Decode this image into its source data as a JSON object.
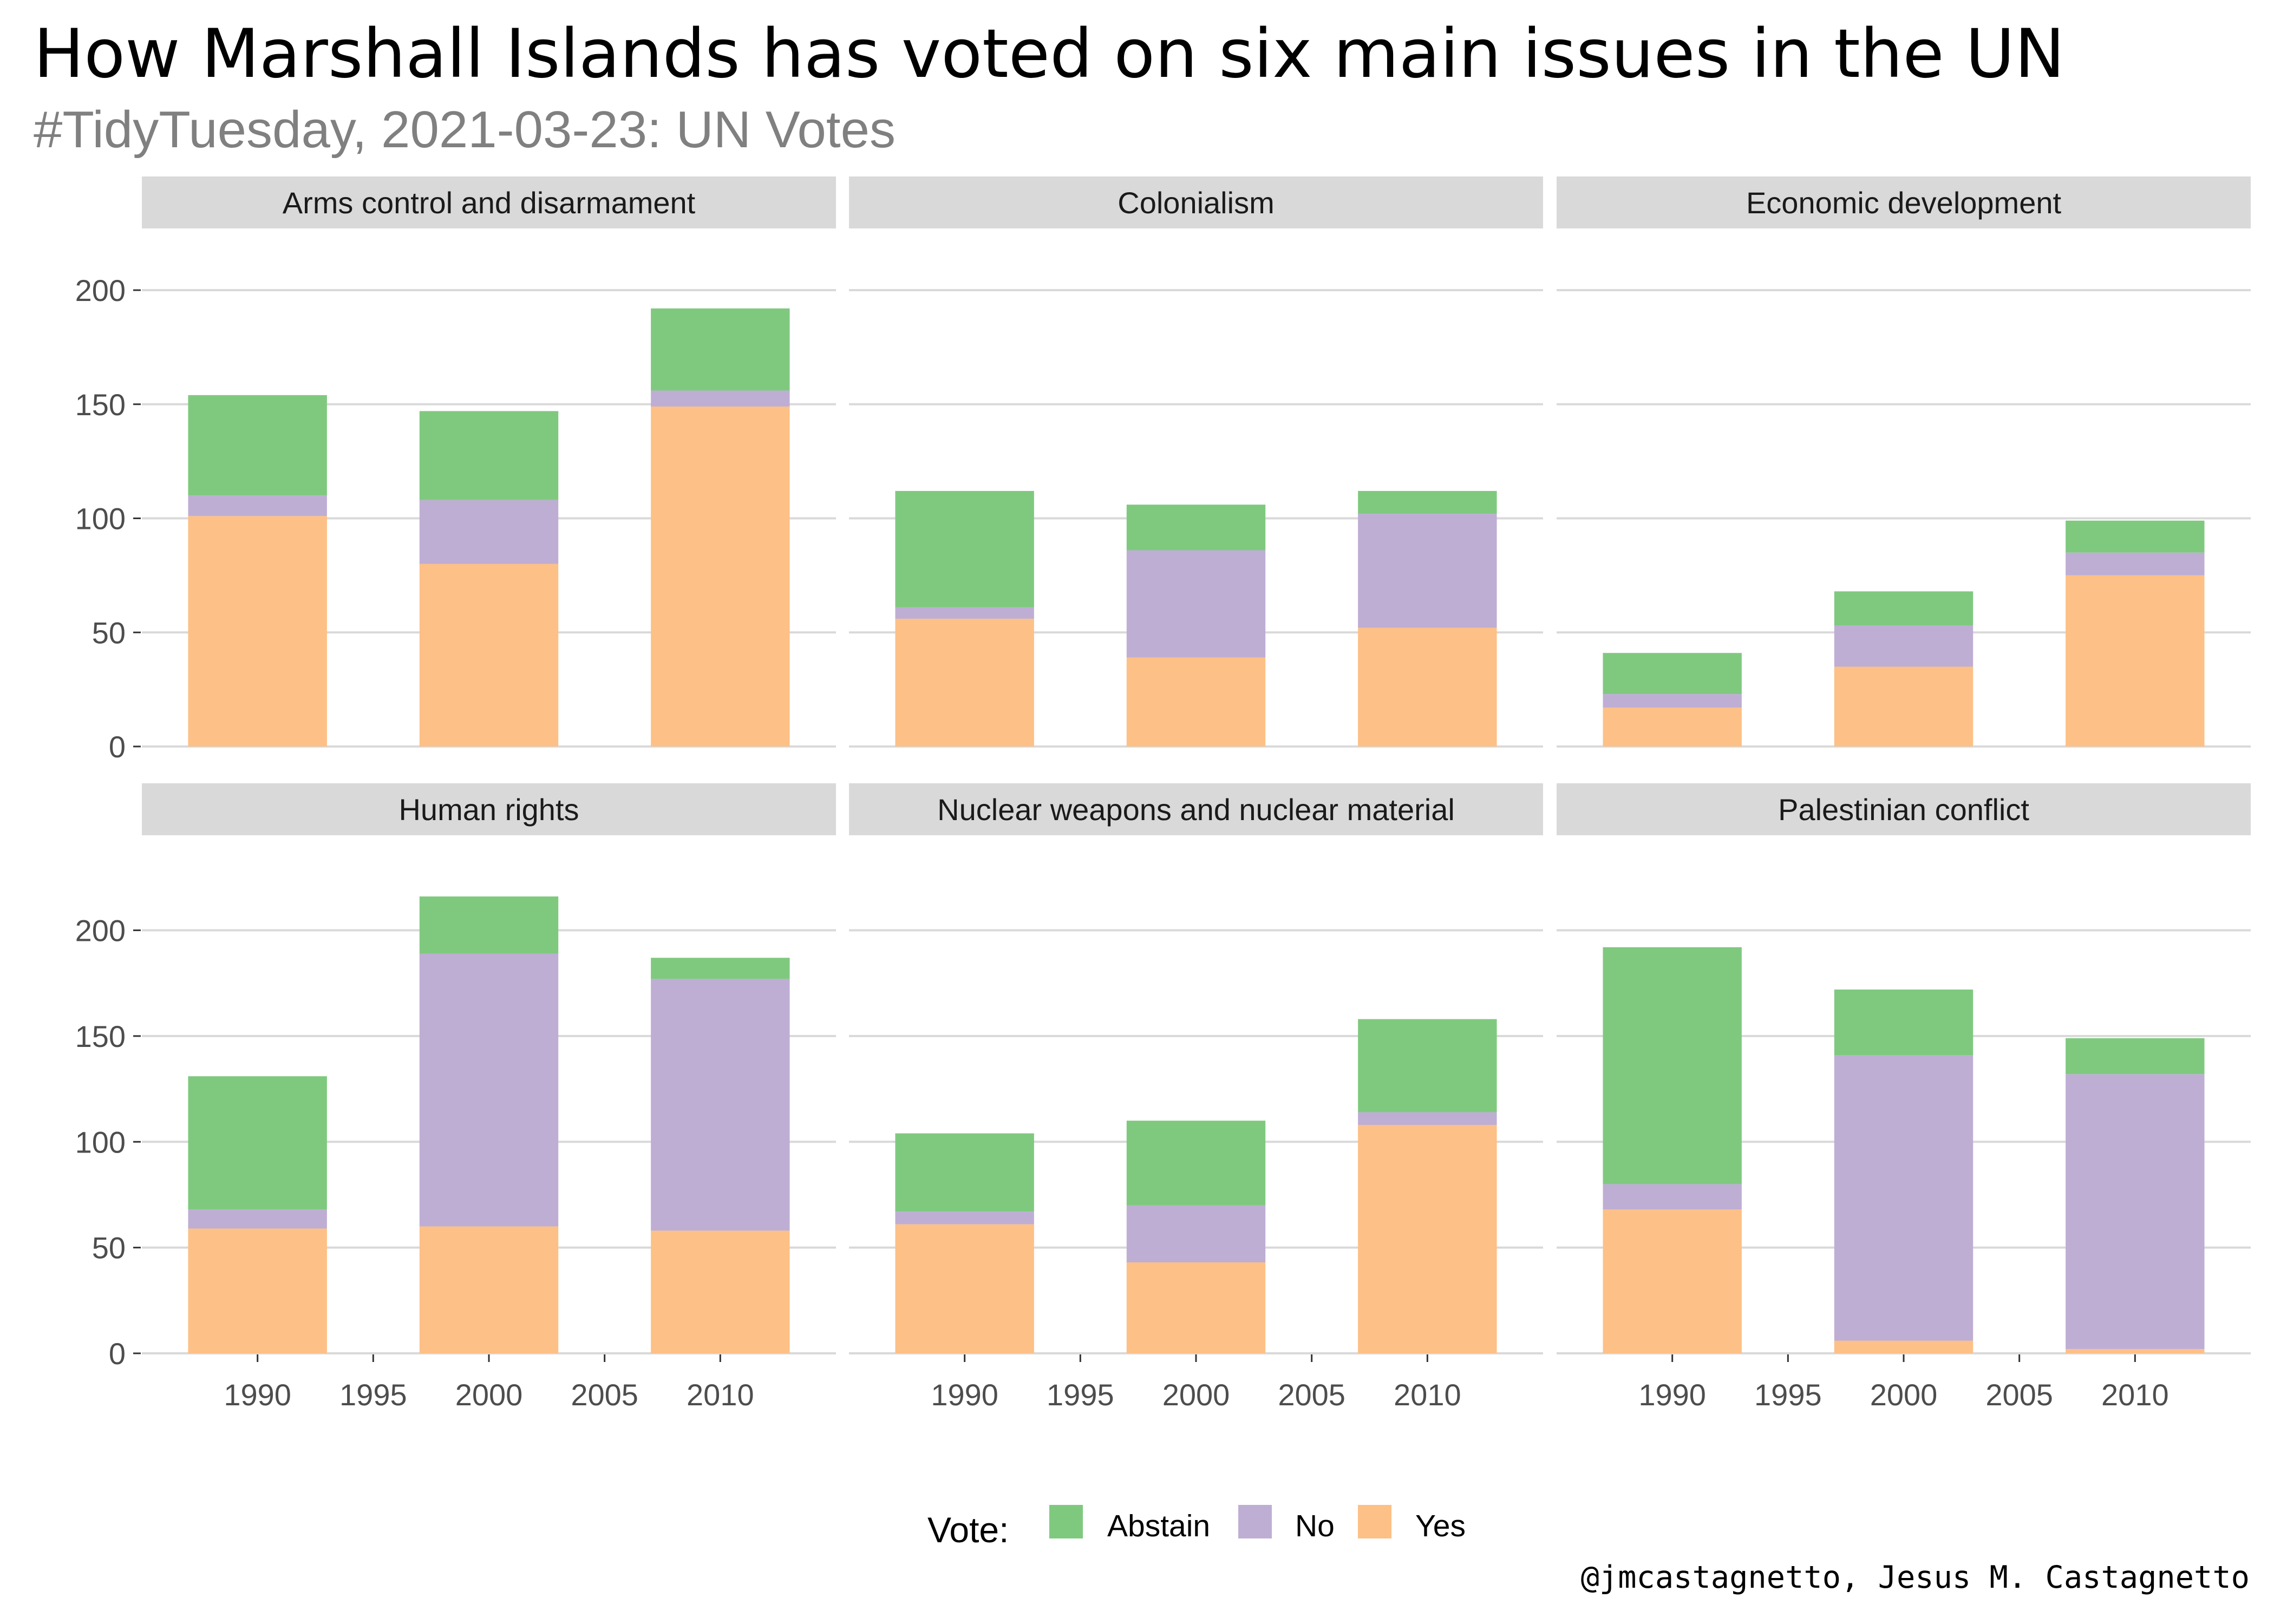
{
  "title": "How Marshall Islands has voted on six main issues in the UN",
  "subtitle": "#TidyTuesday, 2021-03-23: UN Votes",
  "caption": "@jmcastagnetto, Jesus M. Castagnetto",
  "legend": {
    "title": "Vote:",
    "items": [
      {
        "label": "Abstain",
        "color": "#7fc97f"
      },
      {
        "label": "No",
        "color": "#beaed4"
      },
      {
        "label": "Yes",
        "color": "#fdc086"
      }
    ],
    "position": "bottom"
  },
  "colors": {
    "Abstain": "#7fc97f",
    "No": "#beaed4",
    "Yes": "#fdc086",
    "strip_bg": "#d9d9d9",
    "grid": "#d9d9d9",
    "axis_text": "#4d4d4d",
    "subtitle": "#808080"
  },
  "chart_data": {
    "type": "bar",
    "stacked": true,
    "facet_layout": {
      "rows": 2,
      "cols": 3
    },
    "x": [
      1990,
      2000,
      2010
    ],
    "x_ticks": [
      1990,
      1995,
      2000,
      2005,
      2010
    ],
    "xlim": [
      1985,
      2015
    ],
    "y_ticks": [
      0,
      50,
      100,
      150,
      200
    ],
    "ylim_row1": [
      0,
      200
    ],
    "ylim_row2": [
      0,
      216
    ],
    "grid": true,
    "series_order": [
      "Yes",
      "No",
      "Abstain"
    ],
    "panels": [
      {
        "title": "Arms control and disarmament",
        "row": 1,
        "series": [
          {
            "name": "Yes",
            "values": [
              101,
              80,
              149
            ]
          },
          {
            "name": "No",
            "values": [
              9,
              28,
              7
            ]
          },
          {
            "name": "Abstain",
            "values": [
              44,
              39,
              36
            ]
          }
        ]
      },
      {
        "title": "Colonialism",
        "row": 1,
        "series": [
          {
            "name": "Yes",
            "values": [
              56,
              39,
              52
            ]
          },
          {
            "name": "No",
            "values": [
              5,
              47,
              50
            ]
          },
          {
            "name": "Abstain",
            "values": [
              51,
              20,
              10
            ]
          }
        ]
      },
      {
        "title": "Economic development",
        "row": 1,
        "series": [
          {
            "name": "Yes",
            "values": [
              17,
              35,
              75
            ]
          },
          {
            "name": "No",
            "values": [
              6,
              18,
              10
            ]
          },
          {
            "name": "Abstain",
            "values": [
              18,
              15,
              14
            ]
          }
        ]
      },
      {
        "title": "Human rights",
        "row": 2,
        "series": [
          {
            "name": "Yes",
            "values": [
              59,
              60,
              58
            ]
          },
          {
            "name": "No",
            "values": [
              9,
              129,
              119
            ]
          },
          {
            "name": "Abstain",
            "values": [
              63,
              27,
              10
            ]
          }
        ]
      },
      {
        "title": "Nuclear weapons and nuclear material",
        "row": 2,
        "series": [
          {
            "name": "Yes",
            "values": [
              61,
              43,
              108
            ]
          },
          {
            "name": "No",
            "values": [
              6,
              27,
              6
            ]
          },
          {
            "name": "Abstain",
            "values": [
              37,
              40,
              44
            ]
          }
        ]
      },
      {
        "title": "Palestinian conflict",
        "row": 2,
        "series": [
          {
            "name": "Yes",
            "values": [
              68,
              6,
              2
            ]
          },
          {
            "name": "No",
            "values": [
              12,
              135,
              130
            ]
          },
          {
            "name": "Abstain",
            "values": [
              112,
              31,
              17
            ]
          }
        ]
      }
    ]
  }
}
